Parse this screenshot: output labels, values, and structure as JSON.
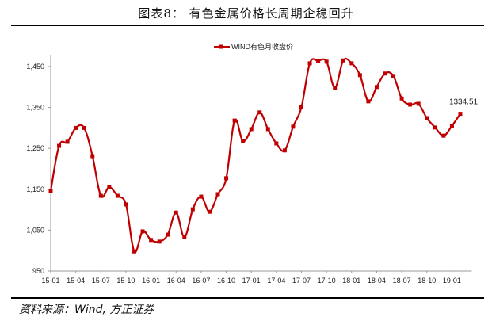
{
  "figure": {
    "title": "图表8： 有色金属价格长周期企稳回升",
    "source": "资料来源：Wind, 方正证券"
  },
  "chart_data": {
    "type": "line",
    "title": "图表8： 有色金属价格长周期企稳回升",
    "legend": [
      "WIND有色月收盘价"
    ],
    "legend_position": "top-center",
    "xlabel": "",
    "ylabel": "",
    "ylim": [
      950,
      1500
    ],
    "yticks": [
      950,
      1050,
      1150,
      1250,
      1350,
      1450
    ],
    "ytick_labels": [
      "950",
      "1,050",
      "1,150",
      "1,250",
      "1,350",
      "1,450"
    ],
    "xtick_labels": [
      "15-01",
      "15-04",
      "15-07",
      "15-10",
      "16-01",
      "16-04",
      "16-07",
      "16-10",
      "17-01",
      "17-04",
      "17-07",
      "17-10",
      "18-01",
      "18-04",
      "18-07",
      "18-10",
      "19-01"
    ],
    "grid": false,
    "color": "#C00000",
    "annotation": {
      "text": "1334.51",
      "at": "last"
    },
    "x": [
      "15-01",
      "15-02",
      "15-03",
      "15-04",
      "15-05",
      "15-06",
      "15-07",
      "15-08",
      "15-09",
      "15-10",
      "15-11",
      "15-12",
      "16-01",
      "16-02",
      "16-03",
      "16-04",
      "16-05",
      "16-06",
      "16-07",
      "16-08",
      "16-09",
      "16-10",
      "16-11",
      "16-12",
      "17-01",
      "17-02",
      "17-03",
      "17-04",
      "17-05",
      "17-06",
      "17-07",
      "17-08",
      "17-09",
      "17-10",
      "17-11",
      "17-12",
      "18-01",
      "18-02",
      "18-03",
      "18-04",
      "18-05",
      "18-06",
      "18-07",
      "18-08",
      "18-09",
      "18-10",
      "18-11",
      "18-12",
      "19-01",
      "19-02"
    ],
    "series": [
      {
        "name": "WIND有色月收盘价",
        "values": [
          1146,
          1256,
          1266,
          1300,
          1300,
          1231,
          1134,
          1155,
          1134,
          1113,
          998,
          1047,
          1026,
          1022,
          1039,
          1093,
          1033,
          1101,
          1132,
          1095,
          1138,
          1177,
          1318,
          1268,
          1297,
          1338,
          1297,
          1262,
          1245,
          1303,
          1351,
          1458,
          1464,
          1462,
          1398,
          1465,
          1458,
          1429,
          1365,
          1400,
          1433,
          1427,
          1372,
          1357,
          1359,
          1324,
          1301,
          1281,
          1305,
          1334.51
        ]
      }
    ]
  }
}
